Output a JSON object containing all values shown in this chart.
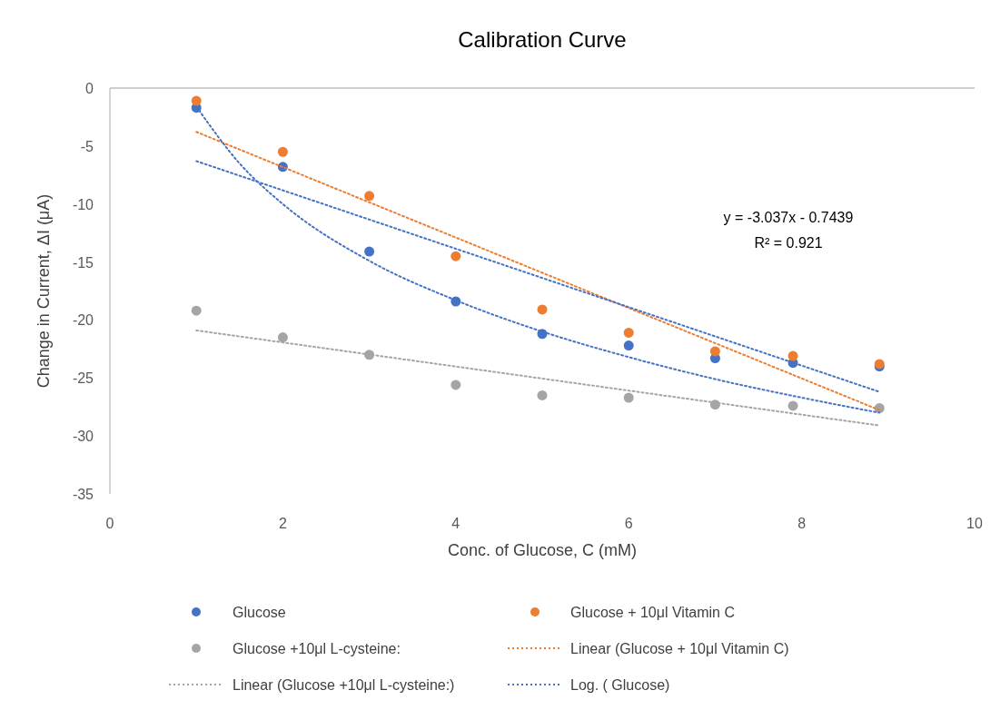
{
  "chart_data": {
    "type": "scatter",
    "title": "Calibration Curve",
    "xlabel": "Conc. of Glucose, C (mM)",
    "ylabel": "Change in Current, ΔI (μA)",
    "x": [
      1,
      2,
      3,
      4,
      5,
      6,
      7,
      7.9,
      8.9
    ],
    "xlim": [
      0,
      10
    ],
    "xticks": [
      0,
      2,
      4,
      6,
      8,
      10
    ],
    "ylim": [
      -35,
      0
    ],
    "yticks": [
      0,
      -5,
      -10,
      -15,
      -20,
      -25,
      -30,
      -35
    ],
    "grid": false,
    "legend": "bottom",
    "marker": "circle",
    "series": [
      {
        "name": "Glucose",
        "color": "#4472c4",
        "values": [
          -1.7,
          -6.8,
          -14.1,
          -18.4,
          -21.2,
          -22.2,
          -23.3,
          -23.7,
          -24.0
        ]
      },
      {
        "name": "Glucose + 10μl Vitamin C",
        "color": "#ed7d31",
        "values": [
          -1.1,
          -5.5,
          -9.3,
          -14.5,
          -19.1,
          -21.1,
          -22.7,
          -23.1,
          -23.8
        ]
      },
      {
        "name": "Glucose +10μl L-cysteine:",
        "color": "#a5a5a5",
        "values": [
          -19.2,
          -21.5,
          -23.0,
          -25.6,
          -26.5,
          -26.7,
          -27.3,
          -27.4,
          -27.6
        ]
      },
      {
        "name": "Linear (Glucose + 10μl Vitamin C)",
        "type": "line",
        "marker": "none",
        "line_style": "dotted",
        "color": "#ed7d31",
        "x": [
          1,
          8.9
        ],
        "values": [
          -3.78,
          -27.77
        ]
      },
      {
        "name": "Linear (Glucose +10μl L-cysteine:)",
        "type": "line",
        "marker": "none",
        "line_style": "dotted",
        "color": "#a5a5a5",
        "x": [
          1,
          8.9
        ],
        "values": [
          -20.9,
          -29.1
        ]
      },
      {
        "name": "Log. ( Glucose)",
        "type": "line",
        "marker": "none",
        "line_style": "dotted",
        "color": "#4472c4",
        "x": [
          1,
          1.5,
          2,
          3,
          4,
          5,
          6,
          7,
          8,
          8.9
        ],
        "values": [
          -1.6,
          -6.5,
          -10.0,
          -14.9,
          -18.3,
          -21.0,
          -23.2,
          -25.1,
          -26.7,
          -28.0
        ]
      },
      {
        "type": "line",
        "marker": "none",
        "line_style": "dotted",
        "color": "#4472c4",
        "x": [
          1,
          8.9
        ],
        "values": [
          -6.3,
          -26.2
        ]
      }
    ],
    "annotations": [
      "y = -3.037x - 0.7439",
      "R² = 0.921"
    ]
  }
}
